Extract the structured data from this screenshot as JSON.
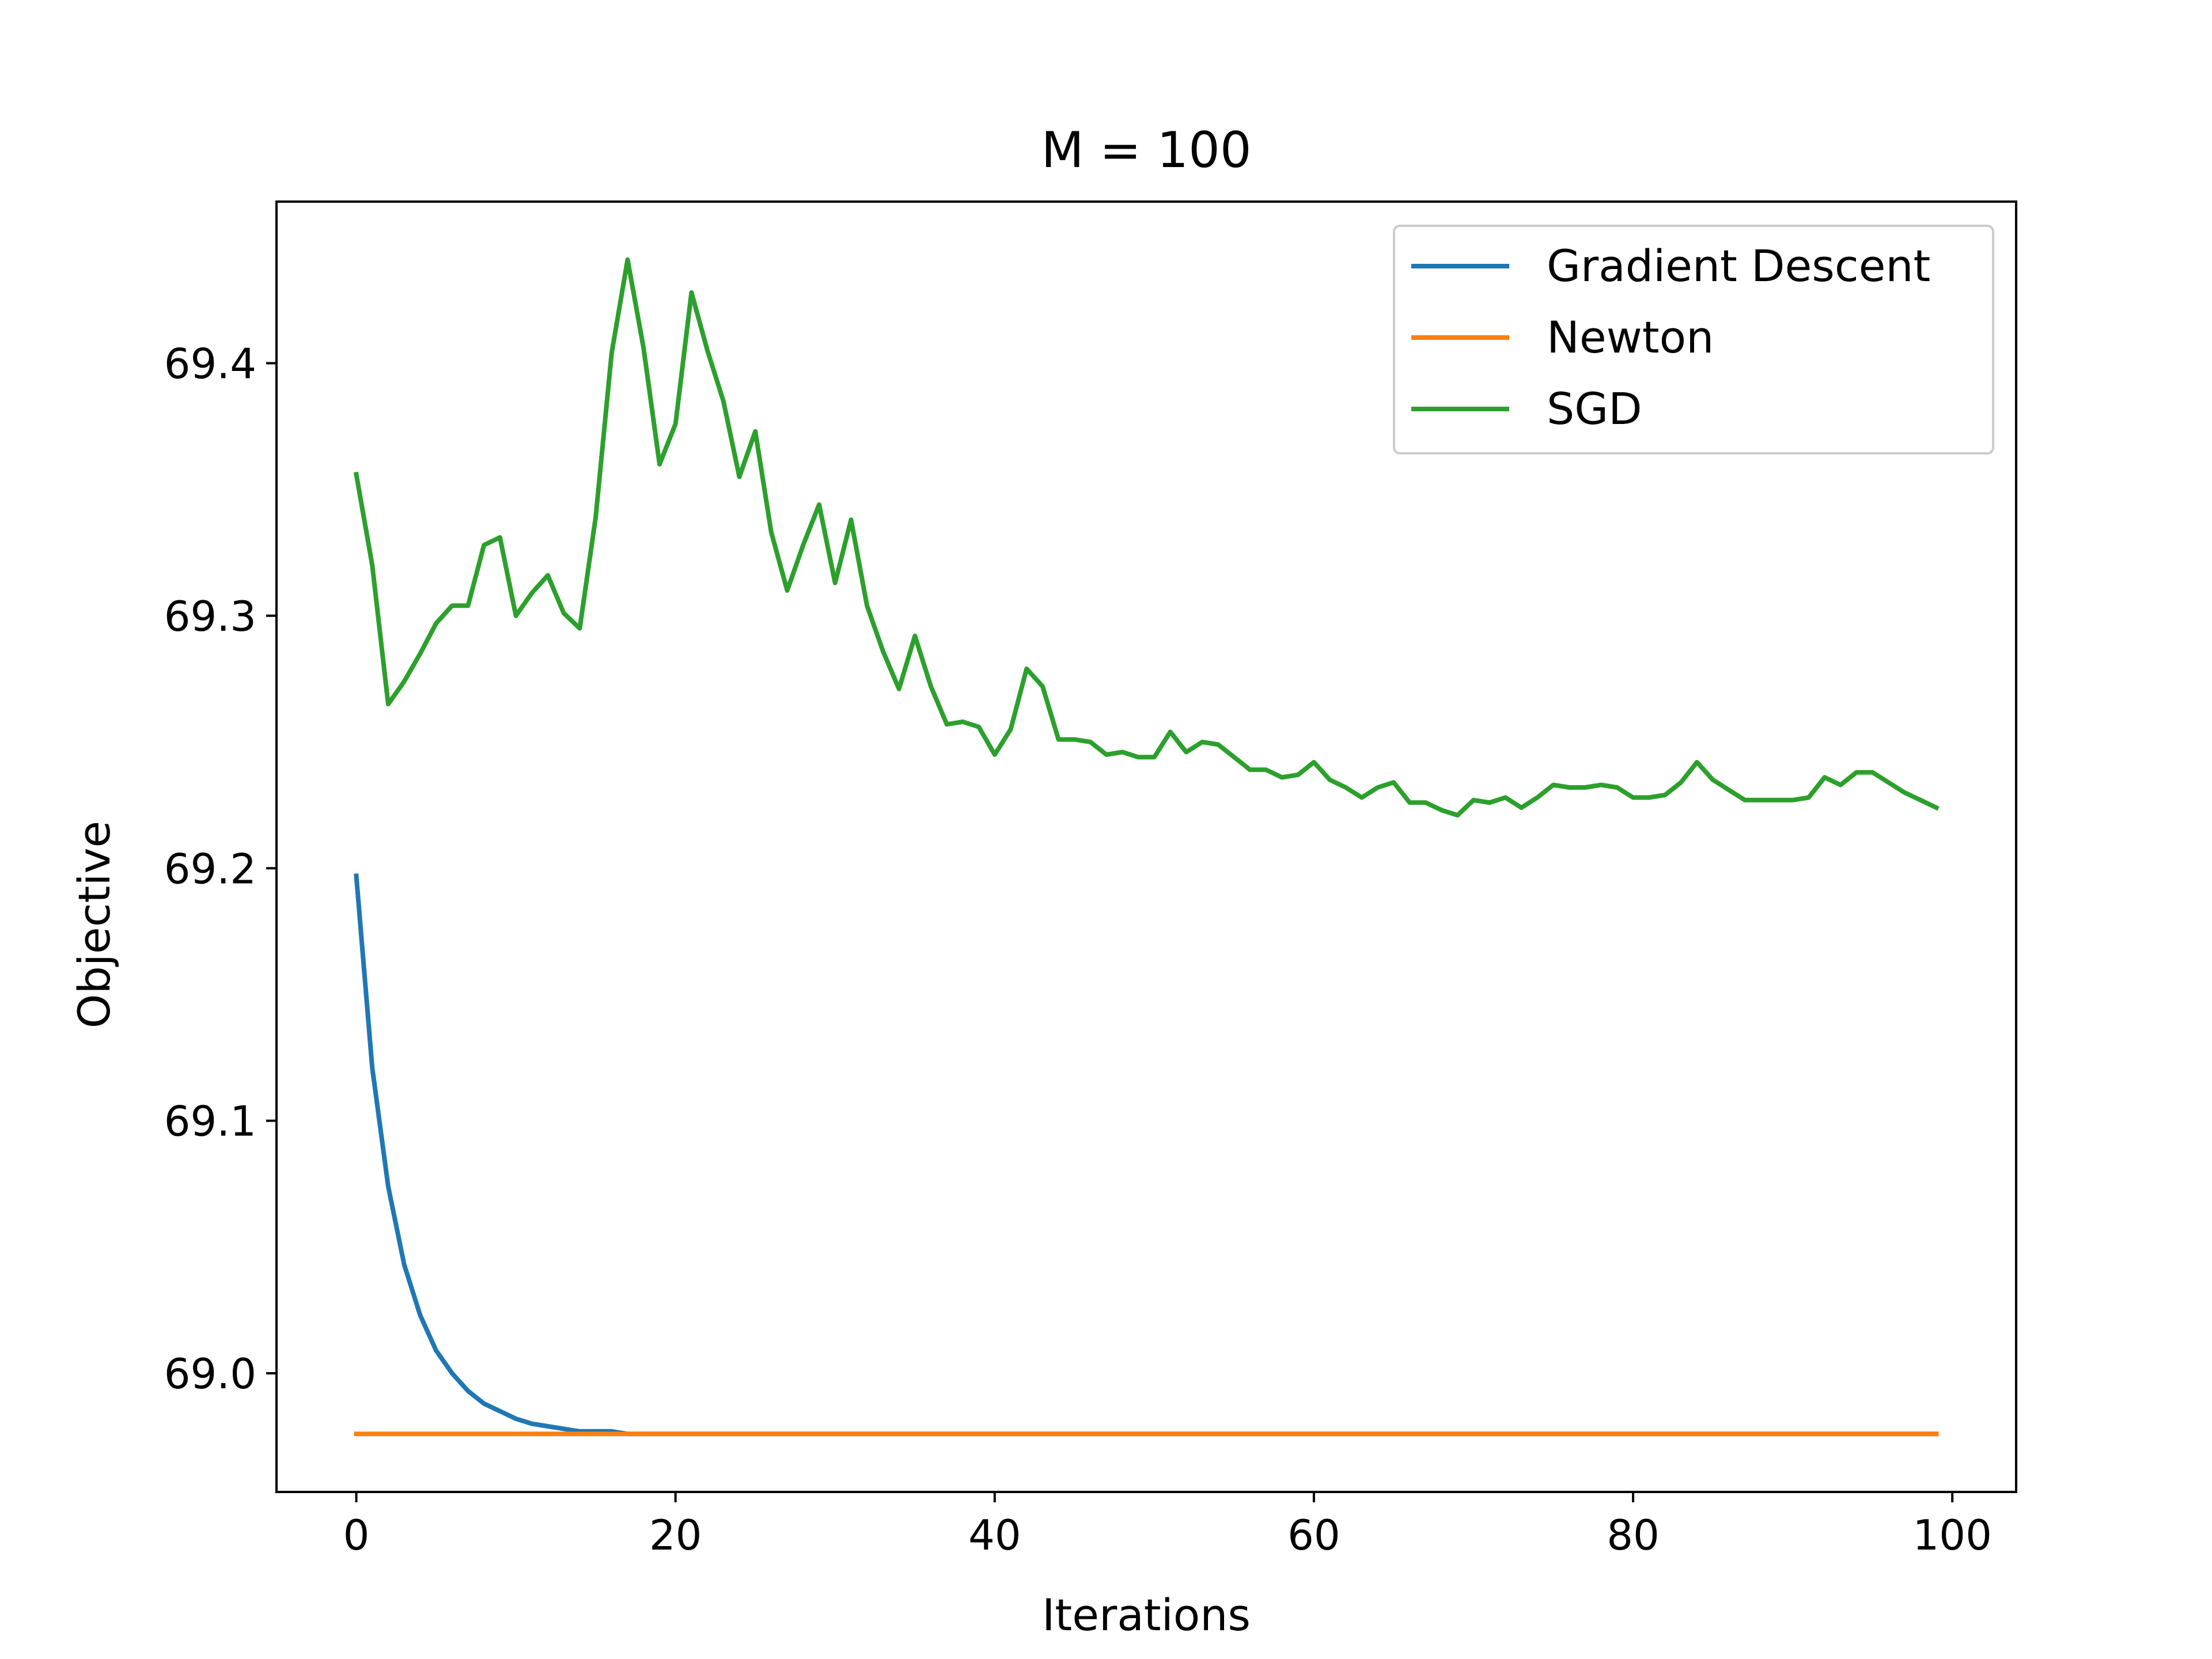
{
  "chart_data": {
    "type": "line",
    "title": "M = 100",
    "xlabel": "Iterations",
    "ylabel": "Objective",
    "xlim": [
      -5,
      104
    ],
    "ylim": [
      68.953,
      69.464
    ],
    "xticks": [
      0,
      20,
      40,
      60,
      80,
      100
    ],
    "xtick_labels": [
      "0",
      "20",
      "40",
      "60",
      "80",
      "100"
    ],
    "yticks": [
      69.0,
      69.1,
      69.2,
      69.3,
      69.4
    ],
    "ytick_labels": [
      "69.0",
      "69.1",
      "69.2",
      "69.3",
      "69.4"
    ],
    "grid": false,
    "legend_position": "upper right",
    "series": [
      {
        "name": "Gradient Descent",
        "color": "#1f77b4",
        "x": [
          0,
          1,
          2,
          3,
          4,
          5,
          6,
          7,
          8,
          9,
          10,
          11,
          12,
          13,
          14,
          15,
          16,
          17,
          18,
          19,
          20,
          21,
          22,
          23,
          24,
          25,
          26,
          27,
          28,
          29,
          30,
          31,
          32,
          33,
          34,
          35,
          36,
          37,
          38,
          39,
          40,
          41,
          42,
          43,
          44,
          45,
          46,
          47,
          48,
          49,
          50,
          51,
          52,
          53,
          54,
          55,
          56,
          57,
          58,
          59,
          60,
          61,
          62,
          63,
          64,
          65,
          66,
          67,
          68,
          69,
          70,
          71,
          72,
          73,
          74,
          75,
          76,
          77,
          78,
          79,
          80,
          81,
          82,
          83,
          84,
          85,
          86,
          87,
          88,
          89,
          90,
          91,
          92,
          93,
          94,
          95,
          96,
          97,
          98,
          99
        ],
        "y": [
          69.197,
          69.121,
          69.074,
          69.043,
          69.023,
          69.009,
          69.0,
          68.993,
          68.988,
          68.985,
          68.982,
          68.98,
          68.979,
          68.978,
          68.977,
          68.977,
          68.977,
          68.976,
          68.976,
          68.976,
          68.976,
          68.976,
          68.976,
          68.976,
          68.976,
          68.976,
          68.976,
          68.976,
          68.976,
          68.976,
          68.976,
          68.976,
          68.976,
          68.976,
          68.976,
          68.976,
          68.976,
          68.976,
          68.976,
          68.976,
          68.976,
          68.976,
          68.976,
          68.976,
          68.976,
          68.976,
          68.976,
          68.976,
          68.976,
          68.976,
          68.976,
          68.976,
          68.976,
          68.976,
          68.976,
          68.976,
          68.976,
          68.976,
          68.976,
          68.976,
          68.976,
          68.976,
          68.976,
          68.976,
          68.976,
          68.976,
          68.976,
          68.976,
          68.976,
          68.976,
          68.976,
          68.976,
          68.976,
          68.976,
          68.976,
          68.976,
          68.976,
          68.976,
          68.976,
          68.976,
          68.976,
          68.976,
          68.976,
          68.976,
          68.976,
          68.976,
          68.976,
          68.976,
          68.976,
          68.976,
          68.976,
          68.976,
          68.976,
          68.976,
          68.976,
          68.976,
          68.976,
          68.976,
          68.976,
          68.976
        ]
      },
      {
        "name": "Newton",
        "color": "#ff7f0e",
        "x": [
          0,
          99
        ],
        "y": [
          68.976,
          68.976
        ]
      },
      {
        "name": "SGD",
        "color": "#2ca02c",
        "x": [
          0,
          1,
          2,
          3,
          4,
          5,
          6,
          7,
          8,
          9,
          10,
          11,
          12,
          13,
          14,
          15,
          16,
          17,
          18,
          19,
          20,
          21,
          22,
          23,
          24,
          25,
          26,
          27,
          28,
          29,
          30,
          31,
          32,
          33,
          34,
          35,
          36,
          37,
          38,
          39,
          40,
          41,
          42,
          43,
          44,
          45,
          46,
          47,
          48,
          49,
          50,
          51,
          52,
          53,
          54,
          55,
          56,
          57,
          58,
          59,
          60,
          61,
          62,
          63,
          64,
          65,
          66,
          67,
          68,
          69,
          70,
          71,
          72,
          73,
          74,
          75,
          76,
          77,
          78,
          79,
          80,
          81,
          82,
          83,
          84,
          85,
          86,
          87,
          88,
          89,
          90,
          91,
          92,
          93,
          94,
          95,
          96,
          97,
          98,
          99
        ],
        "y": [
          69.356,
          69.32,
          69.265,
          69.274,
          69.285,
          69.297,
          69.304,
          69.304,
          69.328,
          69.331,
          69.3,
          69.309,
          69.316,
          69.301,
          69.295,
          69.339,
          69.404,
          69.441,
          69.406,
          69.36,
          69.376,
          69.428,
          69.405,
          69.385,
          69.355,
          69.373,
          69.333,
          69.31,
          69.328,
          69.344,
          69.313,
          69.338,
          69.304,
          69.286,
          69.271,
          69.292,
          69.272,
          69.257,
          69.258,
          69.256,
          69.245,
          69.255,
          69.279,
          69.272,
          69.251,
          69.251,
          69.25,
          69.245,
          69.246,
          69.244,
          69.244,
          69.254,
          69.246,
          69.25,
          69.249,
          69.244,
          69.239,
          69.239,
          69.236,
          69.237,
          69.242,
          69.235,
          69.232,
          69.228,
          69.232,
          69.234,
          69.226,
          69.226,
          69.223,
          69.221,
          69.227,
          69.226,
          69.228,
          69.224,
          69.228,
          69.233,
          69.232,
          69.232,
          69.233,
          69.232,
          69.228,
          69.228,
          69.229,
          69.234,
          69.242,
          69.235,
          69.231,
          69.227,
          69.227,
          69.227,
          69.227,
          69.228,
          69.236,
          69.233,
          69.238,
          69.238,
          69.234,
          69.23,
          69.227,
          69.224
        ]
      }
    ]
  }
}
